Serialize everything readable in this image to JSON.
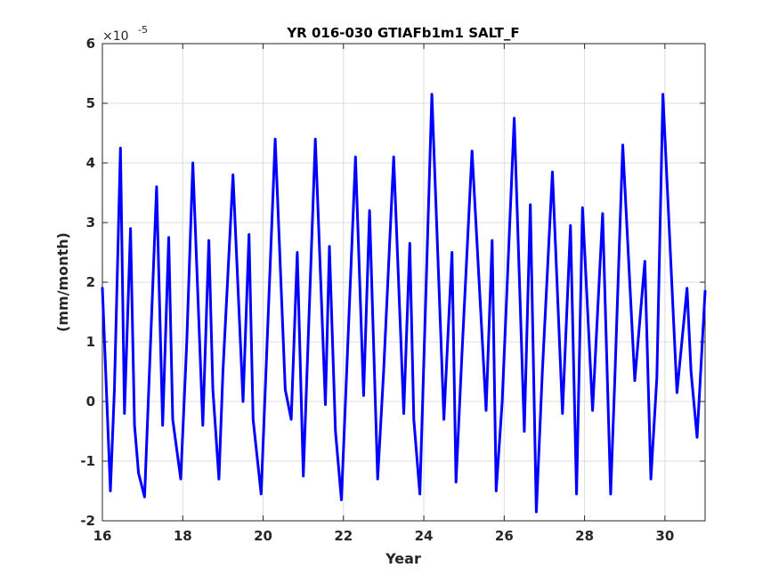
{
  "chart_data": {
    "type": "line",
    "title": "YR 016-030 GTIAFb1m1 SALT_F",
    "xlabel": "Year",
    "ylabel": "(mm/month)",
    "y_multiplier_base": "×10",
    "y_multiplier_exponent": "-5",
    "xlim": [
      16,
      31
    ],
    "ylim": [
      -2,
      6
    ],
    "grid": true,
    "line_color": "#0000ff",
    "xticks": [
      16,
      18,
      20,
      22,
      24,
      26,
      28,
      30
    ],
    "xtick_labels": [
      "16",
      "18",
      "20",
      "22",
      "24",
      "26",
      "28",
      "30"
    ],
    "yticks": [
      -2,
      -1,
      0,
      1,
      2,
      3,
      4,
      5,
      6
    ],
    "ytick_labels": [
      "-2",
      "-1",
      "0",
      "1",
      "2",
      "3",
      "4",
      "5",
      "6"
    ],
    "series": [
      {
        "x": [
          16.0,
          16.2,
          16.3,
          16.45,
          16.55,
          16.7,
          16.8,
          16.9,
          17.05,
          17.35,
          17.5,
          17.65,
          17.75,
          17.95,
          18.1,
          18.25,
          18.5,
          18.65,
          18.75,
          18.9,
          19.0,
          19.25,
          19.5,
          19.65,
          19.75,
          19.95,
          20.3,
          20.55,
          20.7,
          20.85,
          21.0,
          21.3,
          21.55,
          21.65,
          21.8,
          21.95,
          22.3,
          22.5,
          22.65,
          22.85,
          23.0,
          23.25,
          23.5,
          23.65,
          23.75,
          23.9,
          24.2,
          24.5,
          24.7,
          24.8,
          24.95,
          25.2,
          25.55,
          25.7,
          25.8,
          25.95,
          26.25,
          26.5,
          26.65,
          26.8,
          26.95,
          27.2,
          27.45,
          27.65,
          27.8,
          27.95,
          28.2,
          28.45,
          28.65,
          28.75,
          28.95,
          29.25,
          29.5,
          29.65,
          29.8,
          29.95,
          30.3,
          30.55,
          30.65,
          30.8,
          31.0
        ],
        "y": [
          1.9,
          -1.5,
          0.2,
          4.25,
          -0.2,
          2.9,
          -0.4,
          -1.2,
          -1.6,
          3.6,
          -0.4,
          2.75,
          -0.3,
          -1.3,
          1.0,
          4.0,
          -0.4,
          2.7,
          0.2,
          -1.3,
          0.5,
          3.8,
          0.0,
          2.8,
          -0.3,
          -1.55,
          4.4,
          0.2,
          -0.3,
          2.5,
          -1.25,
          4.4,
          -0.05,
          2.6,
          -0.5,
          -1.65,
          4.1,
          0.1,
          3.2,
          -1.3,
          0.5,
          4.1,
          -0.2,
          2.65,
          -0.3,
          -1.55,
          5.15,
          -0.3,
          2.5,
          -1.35,
          0.8,
          4.2,
          -0.15,
          2.7,
          -1.5,
          0.0,
          4.75,
          -0.5,
          3.3,
          -1.85,
          0.5,
          3.85,
          -0.2,
          2.95,
          -1.55,
          3.25,
          -0.15,
          3.15,
          -1.55,
          0.3,
          4.3,
          0.35,
          2.35,
          -1.3,
          0.4,
          5.15,
          0.15,
          1.9,
          0.5,
          -0.6,
          1.85
        ]
      }
    ]
  }
}
